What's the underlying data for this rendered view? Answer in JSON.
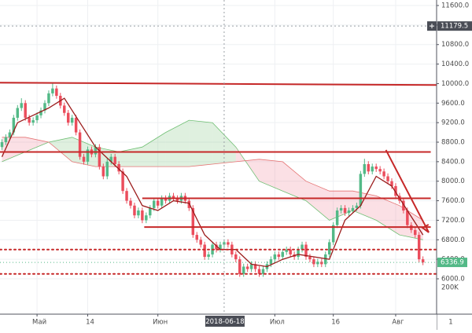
{
  "chart_data": {
    "type": "candlestick",
    "up_color": "#53b987",
    "down_color": "#eb4d5c",
    "xlim": [
      -0.5,
      111.5
    ],
    "ylim": [
      5276,
      11713
    ],
    "grid": true,
    "xticks": [
      {
        "value": 9,
        "label": "Май"
      },
      {
        "value": 22,
        "label": "14"
      },
      {
        "value": 40,
        "label": "Июн"
      },
      {
        "value": 70,
        "label": "Июл"
      },
      {
        "value": 85,
        "label": "16"
      },
      {
        "value": 101,
        "label": "Авг"
      }
    ],
    "yticks": [
      {
        "value": 6000,
        "label": "6000.0"
      },
      {
        "value": 6400,
        "label": "6400.0"
      },
      {
        "value": 6800,
        "label": "6800.0"
      },
      {
        "value": 7200,
        "label": "7200.0"
      },
      {
        "value": 7600,
        "label": "7600.0"
      },
      {
        "value": 8000,
        "label": "8000.0"
      },
      {
        "value": 8400,
        "label": "8400.0"
      },
      {
        "value": 8800,
        "label": "8800.0"
      },
      {
        "value": 9200,
        "label": "9200.0"
      },
      {
        "value": 9600,
        "label": "9600.0"
      },
      {
        "value": 10000,
        "label": "10000.0"
      },
      {
        "value": 10400,
        "label": "10400.0"
      },
      {
        "value": 10800,
        "label": "10800.0"
      },
      {
        "value": 11200,
        "label": "11200.0"
      },
      {
        "value": 11600,
        "label": "11600.0"
      }
    ],
    "volume_label": "200K",
    "corner_label": "1",
    "crosshair": {
      "price": 11179.5,
      "x": 57,
      "date": "2018-06-18"
    },
    "candles": [
      [
        8700,
        8860,
        8640,
        8800
      ],
      [
        8800,
        8960,
        8740,
        8900
      ],
      [
        8900,
        9060,
        8840,
        9000
      ],
      [
        9000,
        9360,
        8940,
        9300
      ],
      [
        9300,
        9560,
        9240,
        9500
      ],
      [
        9500,
        9700,
        9440,
        9600
      ],
      [
        9600,
        9660,
        9240,
        9300
      ],
      [
        9300,
        9360,
        9140,
        9200
      ],
      [
        9200,
        9310,
        9140,
        9250
      ],
      [
        9250,
        9410,
        9190,
        9350
      ],
      [
        9350,
        9510,
        9290,
        9450
      ],
      [
        9450,
        9660,
        9390,
        9600
      ],
      [
        9600,
        9860,
        9540,
        9800
      ],
      [
        9800,
        10000,
        9740,
        9900
      ],
      [
        9900,
        9960,
        9690,
        9750
      ],
      [
        9750,
        9810,
        9490,
        9550
      ],
      [
        9550,
        9610,
        9340,
        9400
      ],
      [
        9400,
        9460,
        9140,
        9200
      ],
      [
        9200,
        9360,
        9140,
        9300
      ],
      [
        9300,
        9360,
        8940,
        9000
      ],
      [
        9000,
        9060,
        8440,
        8500
      ],
      [
        8500,
        8560,
        8340,
        8400
      ],
      [
        8400,
        8710,
        8340,
        8650
      ],
      [
        8650,
        8710,
        8490,
        8550
      ],
      [
        8550,
        8760,
        8490,
        8700
      ],
      [
        8700,
        8760,
        8240,
        8300
      ],
      [
        8300,
        8360,
        8040,
        8100
      ],
      [
        8100,
        8460,
        8040,
        8400
      ],
      [
        8400,
        8560,
        8340,
        8500
      ],
      [
        8500,
        8560,
        8290,
        8350
      ],
      [
        8350,
        8410,
        8140,
        8200
      ],
      [
        8200,
        8260,
        7740,
        7800
      ],
      [
        7800,
        7860,
        7540,
        7600
      ],
      [
        7600,
        7660,
        7440,
        7500
      ],
      [
        7500,
        7560,
        7240,
        7300
      ],
      [
        7300,
        7460,
        7240,
        7400
      ],
      [
        7400,
        7460,
        7140,
        7200
      ],
      [
        7200,
        7360,
        7140,
        7300
      ],
      [
        7300,
        7510,
        7240,
        7450
      ],
      [
        7450,
        7660,
        7390,
        7600
      ],
      [
        7600,
        7660,
        7440,
        7500
      ],
      [
        7500,
        7710,
        7440,
        7650
      ],
      [
        7650,
        7710,
        7540,
        7600
      ],
      [
        7600,
        7760,
        7540,
        7700
      ],
      [
        7700,
        7760,
        7590,
        7650
      ],
      [
        7650,
        7710,
        7540,
        7600
      ],
      [
        7600,
        7760,
        7540,
        7700
      ],
      [
        7700,
        7760,
        7540,
        7600
      ],
      [
        7600,
        7660,
        7390,
        7450
      ],
      [
        7450,
        7510,
        6840,
        6900
      ],
      [
        6900,
        6960,
        6740,
        6800
      ],
      [
        6800,
        6860,
        6640,
        6700
      ],
      [
        6700,
        6760,
        6390,
        6450
      ],
      [
        6450,
        6560,
        6390,
        6500
      ],
      [
        6500,
        6760,
        6440,
        6700
      ],
      [
        6700,
        6760,
        6540,
        6600
      ],
      [
        6600,
        6760,
        6540,
        6700
      ],
      [
        6700,
        6810,
        6640,
        6750
      ],
      [
        6750,
        6810,
        6640,
        6700
      ],
      [
        6700,
        6760,
        6440,
        6500
      ],
      [
        6500,
        6560,
        6340,
        6400
      ],
      [
        6400,
        6460,
        6040,
        6100
      ],
      [
        6100,
        6310,
        6040,
        6250
      ],
      [
        6250,
        6310,
        6140,
        6200
      ],
      [
        6200,
        6360,
        6140,
        6300
      ],
      [
        6300,
        6360,
        6140,
        6200
      ],
      [
        6200,
        6260,
        6040,
        6100
      ],
      [
        6100,
        6260,
        6040,
        6200
      ],
      [
        6200,
        6360,
        6140,
        6300
      ],
      [
        6300,
        6460,
        6240,
        6400
      ],
      [
        6400,
        6560,
        6340,
        6500
      ],
      [
        6500,
        6560,
        6390,
        6450
      ],
      [
        6450,
        6610,
        6390,
        6550
      ],
      [
        6550,
        6660,
        6490,
        6600
      ],
      [
        6600,
        6660,
        6440,
        6500
      ],
      [
        6500,
        6560,
        6390,
        6450
      ],
      [
        6450,
        6660,
        6390,
        6600
      ],
      [
        6600,
        6760,
        6540,
        6700
      ],
      [
        6700,
        6760,
        6390,
        6450
      ],
      [
        6450,
        6510,
        6340,
        6400
      ],
      [
        6400,
        6460,
        6240,
        6300
      ],
      [
        6300,
        6410,
        6240,
        6350
      ],
      [
        6350,
        6410,
        6240,
        6300
      ],
      [
        6300,
        6560,
        6240,
        6500
      ],
      [
        6500,
        6810,
        6440,
        6750
      ],
      [
        6750,
        7160,
        6690,
        7100
      ],
      [
        7100,
        7460,
        7040,
        7400
      ],
      [
        7400,
        7510,
        7340,
        7450
      ],
      [
        7450,
        7510,
        7290,
        7350
      ],
      [
        7350,
        7460,
        7290,
        7400
      ],
      [
        7400,
        7510,
        7340,
        7450
      ],
      [
        7450,
        7560,
        7390,
        7500
      ],
      [
        7500,
        8210,
        7440,
        8150
      ],
      [
        8150,
        8460,
        8090,
        8350
      ],
      [
        8350,
        8410,
        8140,
        8200
      ],
      [
        8200,
        8360,
        8140,
        8300
      ],
      [
        8300,
        8360,
        8190,
        8250
      ],
      [
        8250,
        8310,
        8140,
        8200
      ],
      [
        8200,
        8260,
        8040,
        8100
      ],
      [
        8100,
        8160,
        7940,
        8000
      ],
      [
        8000,
        8060,
        7840,
        7900
      ],
      [
        7900,
        7960,
        7640,
        7700
      ],
      [
        7700,
        7760,
        7540,
        7600
      ],
      [
        7600,
        7660,
        7340,
        7400
      ],
      [
        7400,
        7460,
        7040,
        7100
      ],
      [
        7100,
        7160,
        6940,
        7000
      ],
      [
        7000,
        7060,
        6840,
        6900
      ],
      [
        6900,
        6960,
        6340,
        6400
      ],
      [
        6400,
        6460,
        6280,
        6336.9
      ]
    ],
    "cloud": {
      "x": [
        0,
        6,
        12,
        18,
        24,
        30,
        36,
        42,
        48,
        54,
        60,
        66,
        72,
        78,
        84,
        90,
        96,
        102,
        108
      ],
      "span_a": [
        8400,
        8600,
        8800,
        8900,
        8700,
        8600,
        8700,
        9000,
        9250,
        9200,
        8700,
        8000,
        7800,
        7600,
        7200,
        7400,
        7200,
        6900,
        6800
      ],
      "span_b": [
        8900,
        8900,
        8800,
        8400,
        8300,
        8300,
        8300,
        8300,
        8300,
        8350,
        8400,
        8450,
        8400,
        8000,
        7800,
        7800,
        7700,
        7500,
        7200
      ],
      "color_a": "#6fbf73",
      "color_b": "#e57373"
    },
    "trend_line": {
      "color": "#9b1b1b",
      "x": [
        0,
        4,
        8,
        12,
        16,
        20,
        24,
        28,
        32,
        36,
        40,
        44,
        48,
        52,
        56,
        60,
        64,
        68,
        72,
        76,
        80,
        84,
        88,
        92,
        96,
        100,
        104,
        108
      ],
      "values": [
        8500,
        9200,
        9350,
        9500,
        9700,
        9200,
        8700,
        8400,
        8100,
        7500,
        7400,
        7600,
        7550,
        6900,
        6600,
        6600,
        6300,
        6250,
        6400,
        6500,
        6450,
        6400,
        7200,
        7500,
        8100,
        7900,
        7400,
        6900
      ]
    },
    "drawing_color": "#c62828",
    "lines": [
      {
        "x": [
          -0.5,
          111.5
        ],
        "y": [
          10020,
          9970
        ],
        "style": "solid"
      },
      {
        "x": [
          -0.5,
          110
        ],
        "y": [
          8600,
          8600
        ],
        "style": "solid"
      },
      {
        "x": [
          36,
          110
        ],
        "y": [
          7650,
          7650
        ],
        "style": "solid"
      },
      {
        "x": [
          36.5,
          110
        ],
        "y": [
          7060,
          7060
        ],
        "style": "solid"
      },
      {
        "x": [
          -0.5,
          111.5
        ],
        "y": [
          6600,
          6600
        ],
        "style": "dotted"
      },
      {
        "x": [
          -0.5,
          111.5
        ],
        "y": [
          6100,
          6100
        ],
        "style": "dotted"
      }
    ],
    "arrow": {
      "x": [
        98.5,
        109.5
      ],
      "y": [
        8640,
        6950
      ]
    }
  }
}
